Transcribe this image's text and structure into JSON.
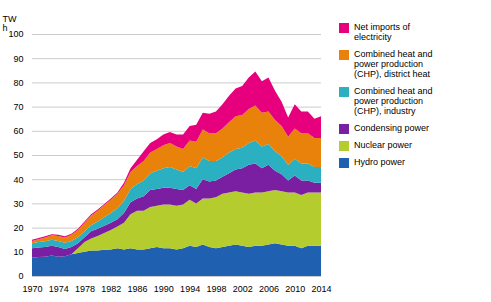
{
  "chart_data": {
    "type": "area",
    "stacked": true,
    "ylabel": "TW\nh",
    "x": [
      1970,
      1971,
      1972,
      1973,
      1974,
      1975,
      1976,
      1977,
      1978,
      1979,
      1980,
      1981,
      1982,
      1983,
      1984,
      1985,
      1986,
      1987,
      1988,
      1989,
      1990,
      1991,
      1992,
      1993,
      1994,
      1995,
      1996,
      1997,
      1998,
      1999,
      2000,
      2001,
      2002,
      2003,
      2004,
      2005,
      2006,
      2007,
      2008,
      2009,
      2010,
      2011,
      2012,
      2013,
      2014
    ],
    "series": [
      {
        "name": "Hydro power",
        "color": "#2060b0",
        "values": [
          7.5,
          7.8,
          8.0,
          8.5,
          8.0,
          8.2,
          9.0,
          9.5,
          10.0,
          10.5,
          10.5,
          10.8,
          11.0,
          11.5,
          11.0,
          11.5,
          11.0,
          11.0,
          11.5,
          12.0,
          11.5,
          11.5,
          11.0,
          11.5,
          12.5,
          12.0,
          13.0,
          12.0,
          11.5,
          12.0,
          12.5,
          13.0,
          12.5,
          12.0,
          12.5,
          12.5,
          13.0,
          13.5,
          13.0,
          12.5,
          12.5,
          11.5,
          12.5,
          12.5,
          12.5
        ]
      },
      {
        "name": "Nuclear power",
        "color": "#b5cc2e",
        "values": [
          0,
          0,
          0,
          0,
          0,
          0,
          0,
          2,
          4,
          5,
          6,
          7,
          8,
          9,
          11,
          14,
          16,
          16,
          17,
          17,
          18,
          18,
          18,
          18,
          19,
          18,
          19,
          20,
          21,
          22,
          22,
          22,
          22,
          22,
          22,
          22,
          22,
          22,
          22,
          22,
          22,
          22,
          22,
          22,
          22
        ]
      },
      {
        "name": "Condensing power",
        "color": "#7b1fa2",
        "values": [
          4,
          4,
          4,
          4,
          4,
          3,
          3,
          2,
          2,
          3,
          3,
          3,
          3,
          3,
          4,
          5,
          5,
          6,
          7,
          7,
          7,
          7,
          7,
          6,
          6,
          6,
          8,
          7,
          7,
          7,
          8,
          9,
          10,
          12,
          12,
          10,
          11,
          8,
          7,
          5,
          7,
          6,
          5,
          4,
          4
        ]
      },
      {
        "name": "Combined heat and\npower production\n(CHP), industry",
        "color": "#2ab0c0",
        "values": [
          2.0,
          2.2,
          2.4,
          2.5,
          2.5,
          2.5,
          2.5,
          2.5,
          2.5,
          2.5,
          3.0,
          3.5,
          4.0,
          4.5,
          5.0,
          5.5,
          6.0,
          6.5,
          7.0,
          7.5,
          8.0,
          8.5,
          8.0,
          7.5,
          8.0,
          8.5,
          9.0,
          8.5,
          8.0,
          8.0,
          8.5,
          8.5,
          8.5,
          9.0,
          9.5,
          9.0,
          8.5,
          8.0,
          7.5,
          6.5,
          7.0,
          7.0,
          7.0,
          6.5,
          6.5
        ]
      },
      {
        "name": "Combined heat and\npower production\n(CHP), district heat",
        "color": "#e8820a",
        "values": [
          1.0,
          1.2,
          1.5,
          1.8,
          2.0,
          2.2,
          2.5,
          3.0,
          3.5,
          4.0,
          4.5,
          5.0,
          5.5,
          6.0,
          6.5,
          7.0,
          7.5,
          8.0,
          8.5,
          9.0,
          9.5,
          10.0,
          9.5,
          9.5,
          10.5,
          11.0,
          11.5,
          11.5,
          11.5,
          12.0,
          12.5,
          13.5,
          13.5,
          14.0,
          14.5,
          14.0,
          13.5,
          13.0,
          12.5,
          11.5,
          12.5,
          12.5,
          12.5,
          12.0,
          12.0
        ]
      },
      {
        "name": "Net imports of\nelectricity",
        "color": "#e6007e",
        "values": [
          0.5,
          0.5,
          0.5,
          0.5,
          0.5,
          0.5,
          0.5,
          0.5,
          0.5,
          0.5,
          0.5,
          0.5,
          0.5,
          0.5,
          1.0,
          1.5,
          2.5,
          4.0,
          4.0,
          4.0,
          4.5,
          4.5,
          5.0,
          6.0,
          6.0,
          7.0,
          7.0,
          8.0,
          9.0,
          10.0,
          11.0,
          11.5,
          12.0,
          13.0,
          14.0,
          13.0,
          14.0,
          12.0,
          10.0,
          8.0,
          10.0,
          9.0,
          9.0,
          8.0,
          9.0
        ]
      }
    ],
    "xlim": [
      1970,
      2014
    ],
    "xticks": [
      1970,
      1974,
      1978,
      1982,
      1986,
      1990,
      1994,
      1998,
      2002,
      2006,
      2010,
      2014
    ],
    "ylim": [
      0,
      100
    ],
    "yticks": [
      0,
      10,
      20,
      30,
      40,
      50,
      60,
      70,
      80,
      90,
      100
    ],
    "grid": true,
    "legend": "right"
  }
}
